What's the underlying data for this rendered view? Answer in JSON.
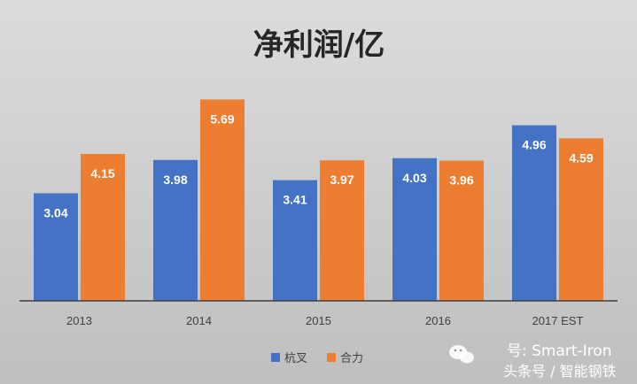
{
  "chart_data": {
    "type": "bar",
    "title": "净利润/亿",
    "categories": [
      "2013",
      "2014",
      "2015",
      "2016",
      "2017 EST"
    ],
    "series": [
      {
        "name": "杭叉",
        "color": "#4472c4",
        "values": [
          3.04,
          3.98,
          3.41,
          4.03,
          4.96
        ]
      },
      {
        "name": "合力",
        "color": "#ed7d31",
        "values": [
          4.15,
          5.69,
          3.97,
          3.96,
          4.59
        ]
      }
    ],
    "value_labels": [
      [
        "3.04",
        "3.98",
        "3.41",
        "4.03",
        "4.96"
      ],
      [
        "4.15",
        "5.69",
        "3.97",
        "3.96",
        "4.59"
      ]
    ],
    "ylim": [
      0,
      6
    ],
    "grid": false,
    "y_axis_visible": false,
    "legend_position": "bottom"
  },
  "watermark": {
    "line1": "号: Smart-Iron",
    "line2": "头条号 / 智能钢铁"
  }
}
